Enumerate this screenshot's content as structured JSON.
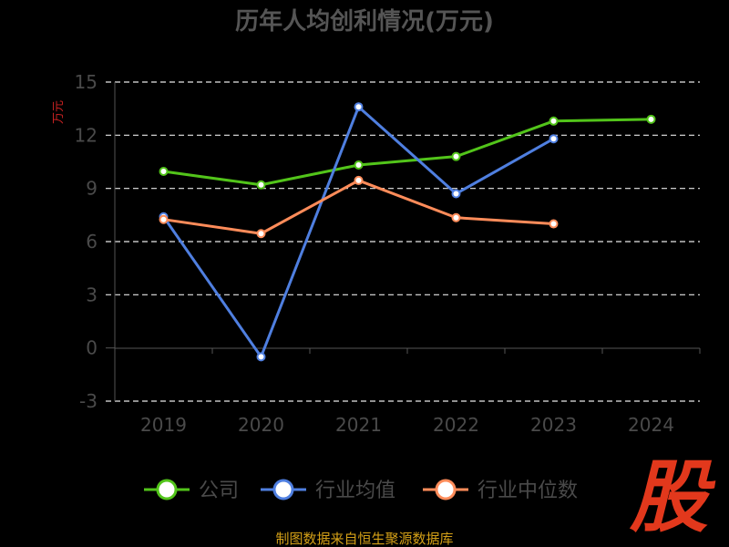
{
  "chart_data": {
    "type": "line",
    "title": "历年人均创利情况(万元)",
    "ylabel": "万元",
    "xlabel": "",
    "categories": [
      "2019",
      "2020",
      "2021",
      "2022",
      "2023",
      "2024"
    ],
    "yticks": [
      "15",
      "12",
      "9",
      "6",
      "3",
      "0",
      "-3"
    ],
    "ylim": [
      -3,
      15
    ],
    "grid": true,
    "legend_position": "bottom",
    "series": [
      {
        "name": "公司",
        "color": "#52c41a",
        "values": [
          9.96,
          9.2,
          10.32,
          10.8,
          12.8,
          12.9
        ]
      },
      {
        "name": "行业均值",
        "color": "#4f7fe0",
        "values": [
          7.4,
          -0.5,
          13.6,
          8.7,
          11.8,
          null
        ]
      },
      {
        "name": "行业中位数",
        "color": "#ff8c5a",
        "values": [
          7.25,
          6.45,
          9.45,
          7.35,
          7.0,
          null
        ]
      }
    ]
  },
  "footer": "制图数据来自恒生聚源数据库",
  "logo_text": "股"
}
